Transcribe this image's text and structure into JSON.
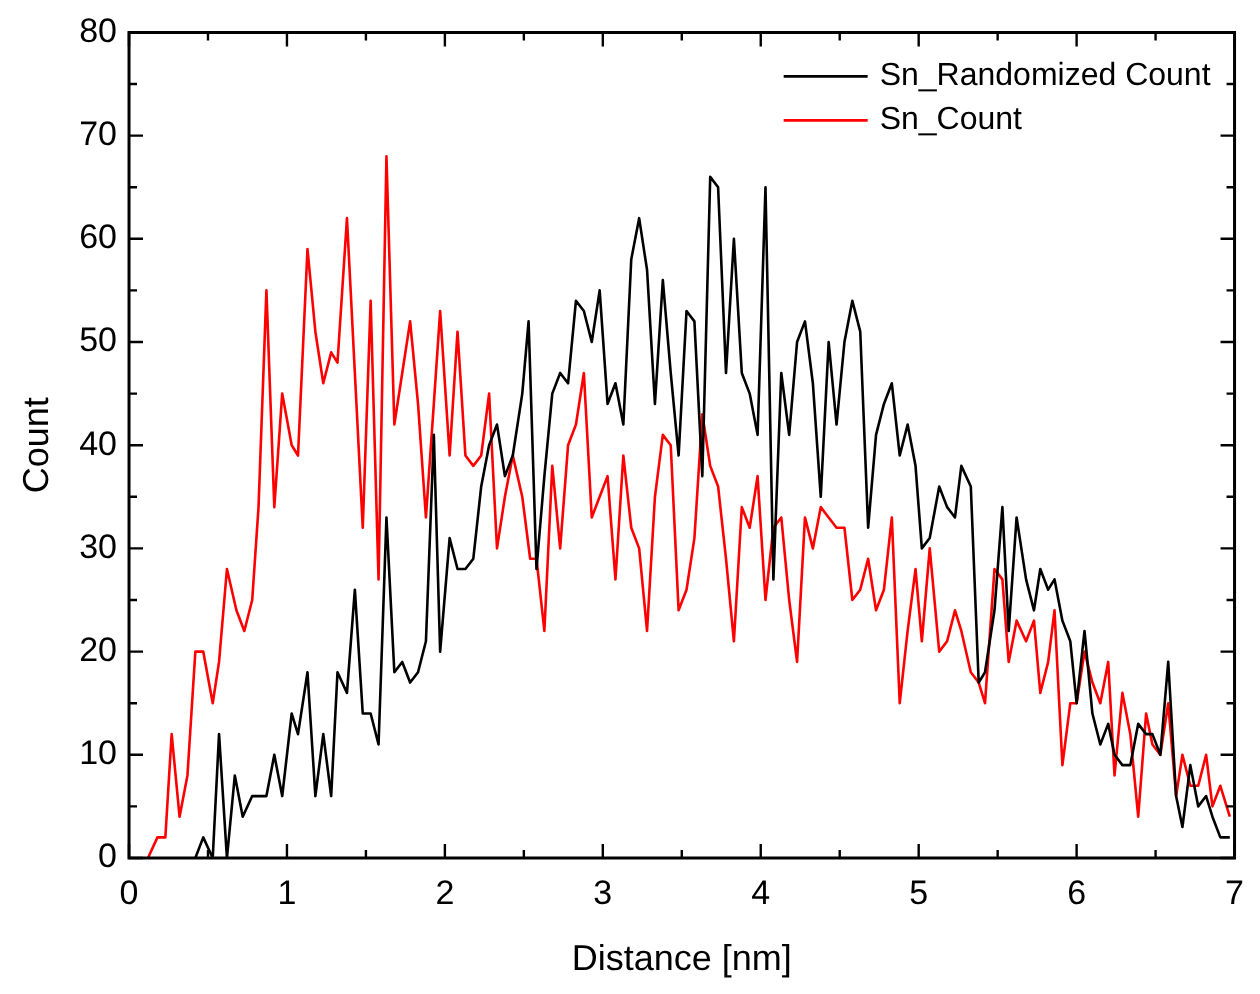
{
  "chart_data": {
    "type": "line",
    "xlabel": "Distance [nm]",
    "ylabel": "Count",
    "xlim": [
      0,
      7
    ],
    "ylim": [
      0,
      80
    ],
    "xticks": [
      0,
      {
        "value": 0.5,
        "label": null
      },
      1,
      {
        "value": 1.5,
        "label": null
      },
      2,
      {
        "value": 2.5,
        "label": null
      },
      3,
      {
        "value": 3.5,
        "label": null
      },
      4,
      {
        "value": 4.5,
        "label": null
      },
      5,
      {
        "value": 5.5,
        "label": null
      },
      6,
      {
        "value": 6.5,
        "label": null
      },
      7
    ],
    "yticks": [
      0,
      {
        "value": 5,
        "label": null
      },
      10,
      {
        "value": 15,
        "label": null
      },
      20,
      {
        "value": 25,
        "label": null
      },
      30,
      {
        "value": 35,
        "label": null
      },
      40,
      {
        "value": 45,
        "label": null
      },
      50,
      {
        "value": 55,
        "label": null
      },
      60,
      {
        "value": 65,
        "label": null
      },
      70,
      {
        "value": 75,
        "label": null
      },
      80
    ],
    "grid": false,
    "legend": "top right",
    "marker": "none",
    "line_style": "solid",
    "series": [
      {
        "name": "Sn_Randomized Count",
        "color": "#000000",
        "x": [
          0.42,
          0.47,
          0.53,
          0.57,
          0.62,
          0.67,
          0.72,
          0.78,
          0.82,
          0.87,
          0.92,
          0.97,
          1.03,
          1.07,
          1.13,
          1.18,
          1.23,
          1.28,
          1.32,
          1.38,
          1.43,
          1.48,
          1.53,
          1.58,
          1.63,
          1.68,
          1.73,
          1.78,
          1.83,
          1.88,
          1.93,
          1.97,
          2.03,
          2.08,
          2.13,
          2.18,
          2.23,
          2.28,
          2.33,
          2.38,
          2.43,
          2.49,
          2.53,
          2.58,
          2.63,
          2.68,
          2.73,
          2.78,
          2.83,
          2.88,
          2.93,
          2.98,
          3.03,
          3.08,
          3.13,
          3.18,
          3.23,
          3.28,
          3.33,
          3.38,
          3.43,
          3.48,
          3.53,
          3.58,
          3.63,
          3.68,
          3.73,
          3.78,
          3.83,
          3.88,
          3.93,
          3.98,
          4.03,
          4.08,
          4.13,
          4.18,
          4.23,
          4.28,
          4.33,
          4.38,
          4.43,
          4.48,
          4.53,
          4.58,
          4.63,
          4.68,
          4.73,
          4.78,
          4.83,
          4.88,
          4.93,
          4.98,
          5.02,
          5.07,
          5.13,
          5.18,
          5.23,
          5.27,
          5.33,
          5.38,
          5.42,
          5.48,
          5.53,
          5.57,
          5.62,
          5.68,
          5.73,
          5.77,
          5.82,
          5.86,
          5.91,
          5.96,
          6.0,
          6.05,
          6.1,
          6.15,
          6.2,
          6.24,
          6.29,
          6.34,
          6.39,
          6.44,
          6.48,
          6.53,
          6.58,
          6.63,
          6.67,
          6.72,
          6.77,
          6.82,
          6.86,
          6.91,
          6.97
        ],
        "values": [
          0,
          2,
          0,
          12,
          0,
          8,
          4,
          6,
          6,
          6,
          10,
          6,
          14,
          12,
          18,
          6,
          12,
          6,
          18,
          16,
          26,
          14,
          14,
          11,
          33,
          18,
          19,
          17,
          18,
          21,
          41,
          20,
          31,
          28,
          28,
          29,
          36,
          40,
          42,
          37,
          39,
          45,
          52,
          28,
          37,
          45,
          47,
          46,
          54,
          53,
          50,
          55,
          44,
          46,
          42,
          58,
          62,
          57,
          44,
          56,
          47,
          39,
          53,
          52,
          37,
          66,
          65,
          47,
          60,
          47,
          45,
          41,
          65,
          27,
          47,
          41,
          50,
          52,
          46,
          35,
          50,
          42,
          50,
          54,
          51,
          32,
          41,
          44,
          46,
          39,
          42,
          38,
          30,
          31,
          36,
          34,
          33,
          38,
          36,
          17,
          18,
          24,
          34,
          22,
          33,
          27,
          24,
          28,
          26,
          27,
          23,
          21,
          15,
          22,
          14,
          11,
          13,
          10,
          9,
          9,
          13,
          12,
          12,
          10,
          19,
          6,
          3,
          9,
          5,
          6,
          4,
          2,
          2
        ]
      },
      {
        "name": "Sn_Count",
        "color": "#ff0000",
        "x": [
          0.12,
          0.18,
          0.23,
          0.27,
          0.32,
          0.37,
          0.42,
          0.47,
          0.53,
          0.57,
          0.62,
          0.68,
          0.73,
          0.78,
          0.82,
          0.87,
          0.92,
          0.97,
          1.03,
          1.07,
          1.13,
          1.18,
          1.23,
          1.28,
          1.32,
          1.38,
          1.43,
          1.48,
          1.53,
          1.58,
          1.63,
          1.68,
          1.73,
          1.78,
          1.83,
          1.88,
          1.93,
          1.97,
          2.03,
          2.08,
          2.13,
          2.18,
          2.23,
          2.28,
          2.33,
          2.38,
          2.43,
          2.49,
          2.54,
          2.58,
          2.63,
          2.68,
          2.73,
          2.78,
          2.83,
          2.88,
          2.93,
          2.98,
          3.03,
          3.08,
          3.13,
          3.18,
          3.23,
          3.28,
          3.33,
          3.38,
          3.43,
          3.48,
          3.53,
          3.58,
          3.63,
          3.68,
          3.73,
          3.78,
          3.83,
          3.88,
          3.93,
          3.98,
          4.03,
          4.08,
          4.13,
          4.18,
          4.23,
          4.28,
          4.33,
          4.38,
          4.43,
          4.48,
          4.53,
          4.58,
          4.63,
          4.68,
          4.73,
          4.78,
          4.83,
          4.88,
          4.93,
          4.98,
          5.02,
          5.07,
          5.13,
          5.18,
          5.23,
          5.27,
          5.33,
          5.38,
          5.42,
          5.48,
          5.53,
          5.57,
          5.62,
          5.68,
          5.73,
          5.77,
          5.82,
          5.86,
          5.91,
          5.96,
          6.0,
          6.05,
          6.1,
          6.15,
          6.2,
          6.24,
          6.29,
          6.34,
          6.39,
          6.44,
          6.48,
          6.53,
          6.58,
          6.63,
          6.67,
          6.72,
          6.77,
          6.82,
          6.86,
          6.91,
          6.97
        ],
        "values": [
          0,
          2,
          2,
          12,
          4,
          8,
          20,
          20,
          15,
          19,
          28,
          24,
          22,
          25,
          34,
          55,
          34,
          45,
          40,
          39,
          59,
          51,
          46,
          49,
          48,
          62,
          47,
          32,
          54,
          27,
          68,
          42,
          47,
          52,
          44,
          33,
          44,
          53,
          39,
          51,
          39,
          38,
          39,
          45,
          30,
          35,
          39,
          35,
          29,
          29,
          22,
          38,
          30,
          40,
          42,
          47,
          33,
          35,
          37,
          27,
          39,
          32,
          30,
          22,
          35,
          41,
          40,
          24,
          26,
          31,
          43,
          38,
          36,
          29,
          21,
          34,
          32,
          37,
          25,
          32,
          33,
          25,
          19,
          33,
          30,
          34,
          33,
          32,
          32,
          25,
          26,
          29,
          24,
          26,
          33,
          15,
          22,
          28,
          21,
          30,
          20,
          21,
          24,
          22,
          18,
          17,
          15,
          28,
          27,
          19,
          23,
          21,
          23,
          16,
          19,
          24,
          9,
          15,
          15,
          20,
          17,
          15,
          19,
          8,
          16,
          12,
          4,
          14,
          11,
          10,
          15,
          6,
          10,
          7,
          7,
          10,
          5,
          7,
          4
        ]
      }
    ]
  }
}
